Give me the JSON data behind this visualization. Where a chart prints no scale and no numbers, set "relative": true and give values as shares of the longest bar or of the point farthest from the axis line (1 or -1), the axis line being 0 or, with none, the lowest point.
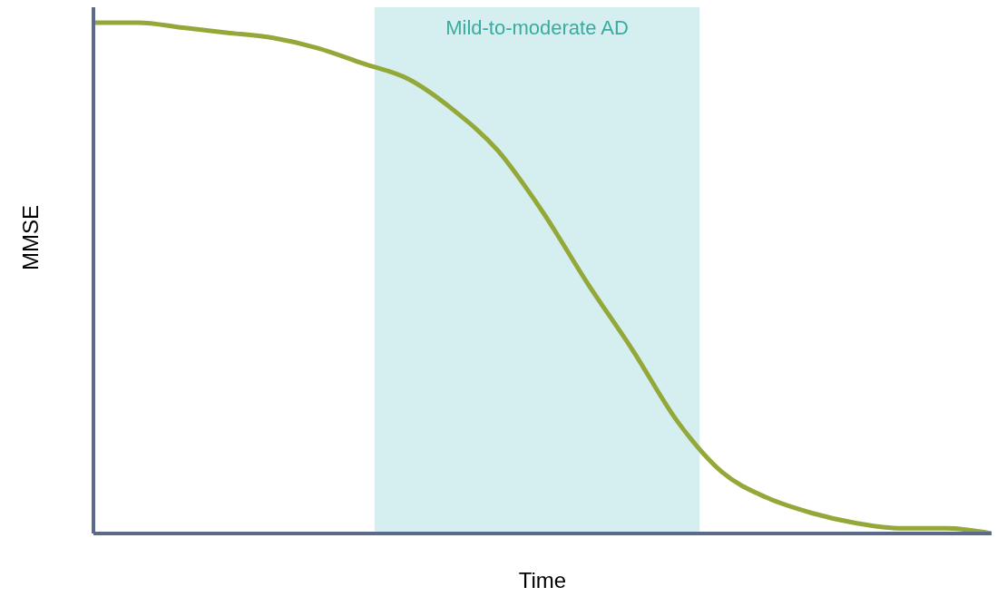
{
  "chart_data": {
    "type": "line",
    "relative": true,
    "xlabel": "Time",
    "ylabel": "MMSE",
    "categories": [
      null,
      null,
      null,
      null,
      null,
      null,
      null,
      null,
      null,
      null,
      null,
      null,
      null,
      null,
      null,
      null,
      null,
      null,
      null,
      null,
      null
    ],
    "series": [
      {
        "color": "#94a83a",
        "values": [
          1.0,
          1.0,
          0.99,
          0.98,
          0.97,
          0.95,
          0.92,
          0.89,
          0.83,
          0.75,
          0.63,
          0.49,
          0.36,
          0.22,
          0.12,
          0.07,
          0.04,
          0.02,
          0.01,
          0.01,
          0.0
        ]
      }
    ],
    "annotations": [
      "Mild-to-moderate AD"
    ],
    "marker": "none",
    "line_style": "solid"
  }
}
